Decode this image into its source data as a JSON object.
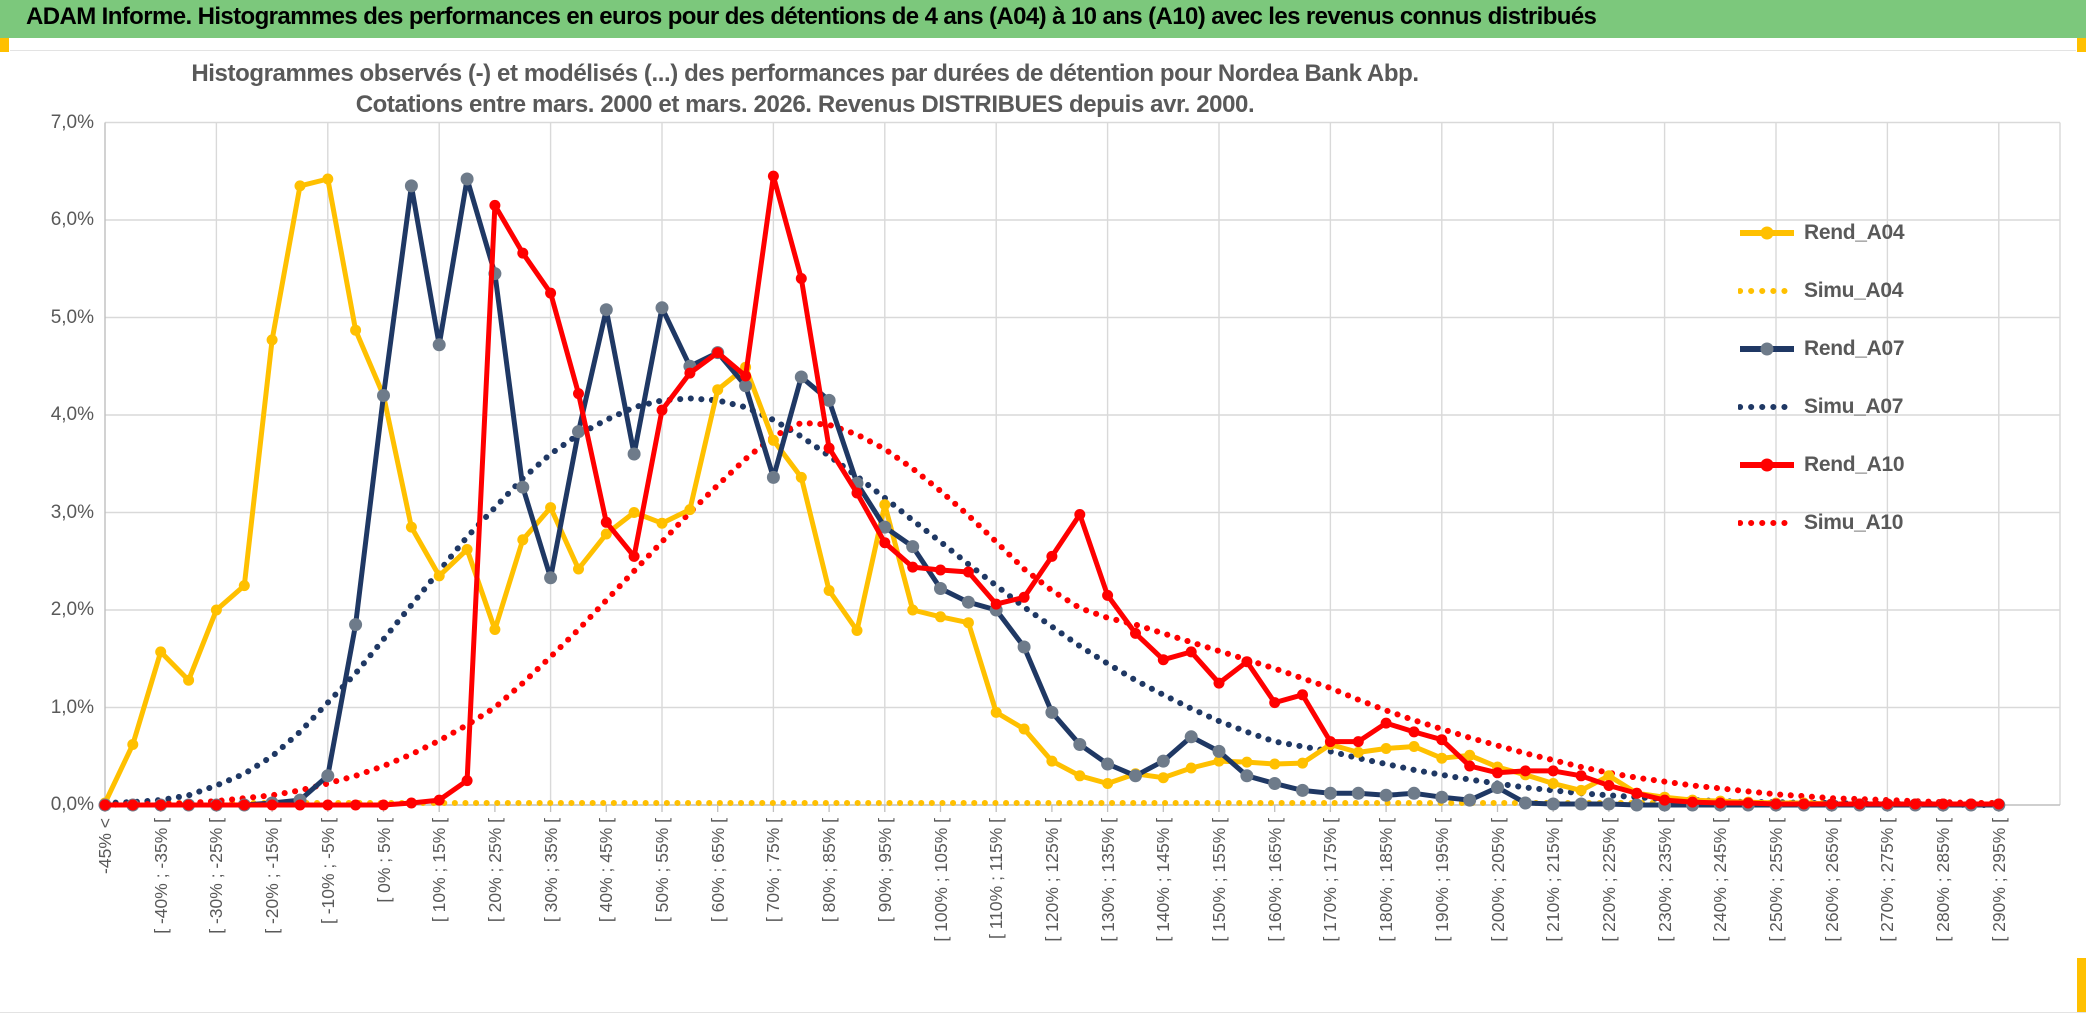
{
  "header": {
    "title": "ADAM Informe. Histogrammes des performances en euros pour des détentions de 4 ans (A04) à 10 ans (A10) avec les revenus connus distribués"
  },
  "colors": {
    "header_green": "#7CC87C",
    "accent_gold": "#FFC000",
    "navy": "#1F3864",
    "red": "#FF0000",
    "grid": "#D9D9D9",
    "axis": "#BFBFBF",
    "text_grey": "#595959",
    "navy_marker_grey": "#6E7B8A"
  },
  "chart_data": {
    "type": "line",
    "title_line1": "Histogrammes observés (-) et modélisés (...) des performances par durées de détention pour Nordea Bank Abp.",
    "title_line2": "Cotations entre mars. 2000 et mars. 2026. Revenus DISTRIBUES depuis avr. 2000.",
    "ylabel": "",
    "xlabel": "",
    "ylim": [
      0,
      7
    ],
    "grid": "on",
    "legend_position": "right-inside",
    "y_tick_labels": [
      "0,0%",
      "1,0%",
      "2,0%",
      "3,0%",
      "4,0%",
      "5,0%",
      "6,0%",
      "7,0%"
    ],
    "x_bins_total": 69,
    "x_labels_every_n_bins": 2,
    "x_tick_labels": [
      "-45% <",
      "[ -40% ; -35% [",
      "[ -30% ; -25% [",
      "[ -20% ; -15% [",
      "[ -10% ; -5% [",
      "[ 0% ; 5% [",
      "[ 10% ; 15% [",
      "[ 20% ; 25% [",
      "[ 30% ; 35% [",
      "[ 40% ; 45% [",
      "[ 50% ; 55% [",
      "[ 60% ; 65% [",
      "[ 70% ; 75% [",
      "[ 80% ; 85% [",
      "[ 90% ; 95% [",
      "[ 100% ; 105% [",
      "[ 110% ; 115% [",
      "[ 120% ; 125% [",
      "[ 130% ; 135% [",
      "[ 140% ; 145% [",
      "[ 150% ; 155% [",
      "[ 160% ; 165% [",
      "[ 170% ; 175% [",
      "[ 180% ; 185% [",
      "[ 190% ; 195% [",
      "[ 200% ; 205% [",
      "[ 210% ; 215% [",
      "[ 220% ; 225% [",
      "[ 230% ; 235% [",
      "[ 240% ; 245% [",
      "[ 250% ; 255% [",
      "[ 260% ; 265% [",
      "[ 270% ; 275% [",
      "[ 280% ; 285% [",
      "[ 290% ; 295% ["
    ],
    "series": [
      {
        "name": "Rend_A04",
        "color": "#FFC000",
        "style": "solid",
        "marker": "#FFC000",
        "values": [
          0.02,
          0.62,
          1.57,
          1.28,
          2.0,
          2.25,
          4.77,
          6.35,
          6.42,
          4.87,
          4.2,
          2.85,
          2.35,
          2.62,
          1.8,
          2.72,
          3.05,
          2.42,
          2.78,
          3.0,
          2.89,
          3.03,
          4.26,
          4.49,
          3.74,
          3.36,
          2.2,
          1.79,
          3.08,
          2.0,
          1.93,
          1.87,
          0.95,
          0.78,
          0.45,
          0.3,
          0.22,
          0.32,
          0.28,
          0.38,
          0.45,
          0.44,
          0.42,
          0.43,
          0.62,
          0.54,
          0.58,
          0.6,
          0.48,
          0.51,
          0.39,
          0.31,
          0.22,
          0.15,
          0.3,
          0.12,
          0.08,
          0.05,
          0.04,
          0.03,
          0.02,
          0.02,
          0.01,
          0.01,
          0.01,
          0.01,
          0.01,
          0.01,
          0.01
        ]
      },
      {
        "name": "Simu_A04",
        "color": "#FFC000",
        "style": "dotted",
        "values": [
          0.02,
          0.02,
          0.02,
          0.02,
          0.02,
          0.02,
          0.02,
          0.02,
          0.02,
          0.02,
          0.02,
          0.02,
          0.02,
          0.02,
          0.02,
          0.02,
          0.02,
          0.02,
          0.02,
          0.02,
          0.02,
          0.02,
          0.02,
          0.02,
          0.02,
          0.02,
          0.02,
          0.02,
          0.02,
          0.02,
          0.02,
          0.02,
          0.02,
          0.02,
          0.02,
          0.02,
          0.02,
          0.02,
          0.02,
          0.02,
          0.02,
          0.02,
          0.02,
          0.02,
          0.02,
          0.02,
          0.02,
          0.02,
          0.02,
          0.02,
          0.02,
          0.02,
          0.02,
          0.02,
          0.02,
          0.02,
          0.02,
          0.02,
          0.02,
          0.02,
          0.02,
          0.02,
          0.02,
          0.02,
          0.02,
          0.02,
          0.02,
          0.02,
          0.02
        ]
      },
      {
        "name": "Rend_A07",
        "color": "#1F3864",
        "style": "solid",
        "marker": "#6E7B8A",
        "values": [
          0,
          0,
          0,
          0,
          0,
          0,
          0.02,
          0.05,
          0.3,
          1.85,
          4.2,
          6.35,
          4.72,
          6.42,
          5.45,
          3.26,
          2.33,
          3.83,
          5.08,
          3.6,
          5.1,
          4.5,
          4.64,
          4.3,
          3.36,
          4.39,
          4.15,
          3.3,
          2.85,
          2.65,
          2.22,
          2.08,
          2.0,
          1.62,
          0.95,
          0.62,
          0.42,
          0.3,
          0.45,
          0.7,
          0.55,
          0.3,
          0.22,
          0.15,
          0.12,
          0.12,
          0.1,
          0.12,
          0.08,
          0.05,
          0.18,
          0.02,
          0.01,
          0.01,
          0.01,
          0,
          0,
          0,
          0,
          0,
          0,
          0,
          0,
          0,
          0,
          0,
          0,
          0,
          0
        ]
      },
      {
        "name": "Simu_A07",
        "color": "#1F3864",
        "style": "dotted",
        "values": [
          0.02,
          0.03,
          0.05,
          0.1,
          0.2,
          0.32,
          0.5,
          0.75,
          1.05,
          1.35,
          1.7,
          2.05,
          2.4,
          2.75,
          3.05,
          3.35,
          3.6,
          3.8,
          3.95,
          4.08,
          4.15,
          4.17,
          4.15,
          4.08,
          3.95,
          3.78,
          3.58,
          3.37,
          3.15,
          2.92,
          2.7,
          2.47,
          2.25,
          2.03,
          1.83,
          1.63,
          1.45,
          1.28,
          1.13,
          0.99,
          0.86,
          0.75,
          0.65,
          0.6,
          0.55,
          0.48,
          0.42,
          0.36,
          0.31,
          0.26,
          0.22,
          0.18,
          0.15,
          0.12,
          0.1,
          0.08,
          0.06,
          0.05,
          0.04,
          0.03,
          0.03,
          0.02,
          0.02,
          0.01,
          0.01,
          0.01,
          0.01,
          0,
          0
        ]
      },
      {
        "name": "Rend_A10",
        "color": "#FF0000",
        "style": "solid",
        "marker": "#FF0000",
        "values": [
          0,
          0,
          0,
          0,
          0,
          0,
          0,
          0,
          0,
          0,
          0,
          0.02,
          0.05,
          0.25,
          6.15,
          5.66,
          5.25,
          4.22,
          2.9,
          2.55,
          4.05,
          4.43,
          4.64,
          4.4,
          6.45,
          5.4,
          3.66,
          3.2,
          2.69,
          2.44,
          2.41,
          2.39,
          2.06,
          2.13,
          2.55,
          2.98,
          2.15,
          1.76,
          1.49,
          1.57,
          1.25,
          1.47,
          1.05,
          1.13,
          0.65,
          0.65,
          0.84,
          0.75,
          0.67,
          0.4,
          0.33,
          0.35,
          0.35,
          0.3,
          0.2,
          0.12,
          0.05,
          0.03,
          0.02,
          0.02,
          0.01,
          0.01,
          0.01,
          0.01,
          0.01,
          0.01,
          0.01,
          0.01,
          0.01
        ]
      },
      {
        "name": "Simu_A10",
        "color": "#FF0000",
        "style": "dotted",
        "values": [
          0,
          0.01,
          0.01,
          0.02,
          0.04,
          0.07,
          0.1,
          0.15,
          0.22,
          0.3,
          0.4,
          0.52,
          0.66,
          0.82,
          1.0,
          1.25,
          1.52,
          1.8,
          2.1,
          2.4,
          2.7,
          3.0,
          3.28,
          3.55,
          3.78,
          3.92,
          3.9,
          3.8,
          3.65,
          3.45,
          3.22,
          2.97,
          2.7,
          2.42,
          2.2,
          2.02,
          1.92,
          1.85,
          1.76,
          1.67,
          1.58,
          1.49,
          1.4,
          1.3,
          1.2,
          1.08,
          0.97,
          0.87,
          0.78,
          0.69,
          0.61,
          0.53,
          0.46,
          0.39,
          0.33,
          0.28,
          0.24,
          0.2,
          0.17,
          0.14,
          0.11,
          0.09,
          0.07,
          0.06,
          0.05,
          0.04,
          0.03,
          0.02,
          0.02
        ]
      }
    ]
  }
}
